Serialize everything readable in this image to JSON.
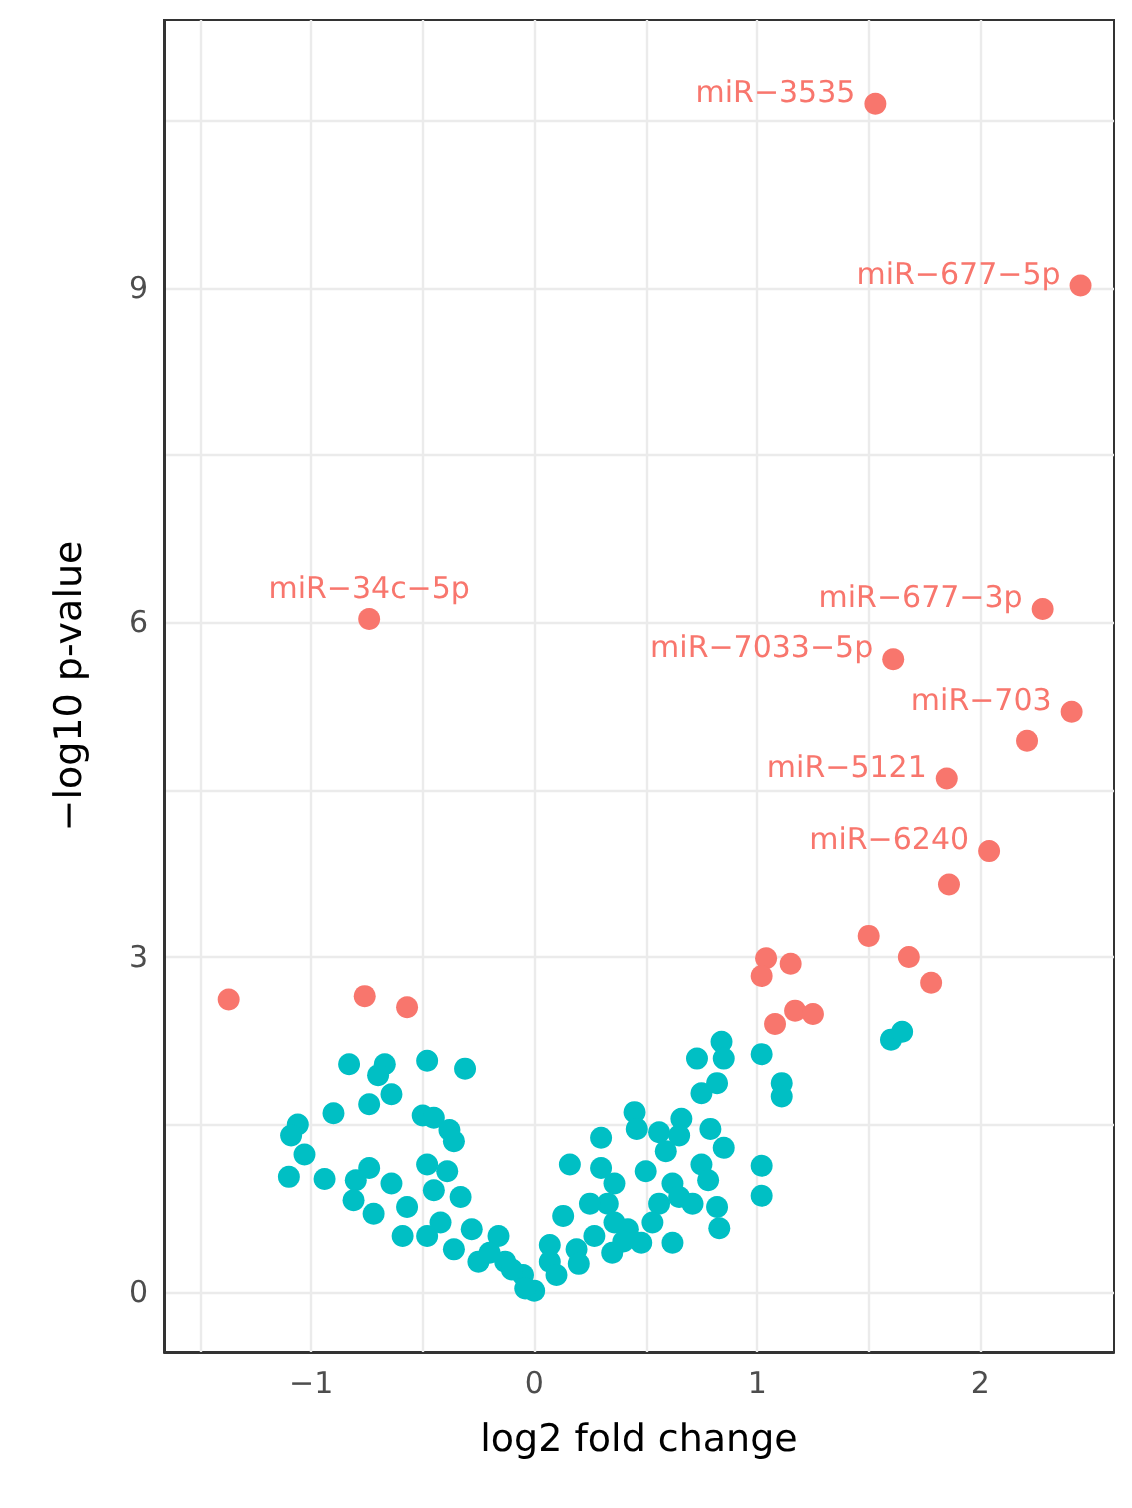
{
  "chart_data": {
    "type": "scatter",
    "xlabel": "log2 fold change",
    "ylabel": "−log10 p-value",
    "xlim": [
      -1.66,
      2.6
    ],
    "ylim": [
      -0.54,
      11.4
    ],
    "xticks": [
      {
        "value": -1.5,
        "label": null
      },
      {
        "value": -1,
        "label": "−1"
      },
      {
        "value": -0.5,
        "label": null
      },
      0,
      {
        "value": 0.5,
        "label": null
      },
      1,
      {
        "value": 1.5,
        "label": null
      },
      2
    ],
    "yticks": [
      0,
      {
        "value": 1.5,
        "label": null
      },
      3,
      {
        "value": 4.5,
        "label": null
      },
      6,
      {
        "value": 7.5,
        "label": null
      },
      9,
      {
        "value": 10.5,
        "label": null
      }
    ],
    "grid": true,
    "marker": "circle",
    "series": [
      {
        "color": "#00bfc4",
        "x": [
          -0.83,
          -0.67,
          -0.7,
          -0.64,
          -0.74,
          -0.9,
          -0.48,
          -0.31,
          -1.06,
          -1.09,
          -1.03,
          -1.1,
          -0.94,
          -0.5,
          -0.45,
          -0.38,
          -0.36,
          -0.74,
          -0.8,
          -0.81,
          -0.72,
          -0.64,
          -0.57,
          -0.59,
          -0.48,
          -0.45,
          -0.39,
          -0.33,
          -0.48,
          -0.42,
          -0.36,
          -0.28,
          -0.25,
          -0.16,
          -0.13,
          -0.05,
          0.0,
          0.07,
          -0.04,
          0.07,
          0.19,
          0.27,
          0.16,
          0.3,
          0.3,
          0.36,
          0.33,
          0.45,
          0.46,
          0.56,
          0.66,
          0.65,
          0.5,
          0.59,
          0.62,
          0.56,
          0.65,
          0.71,
          0.53,
          0.62,
          0.48,
          0.42,
          0.79,
          0.85,
          0.75,
          0.78,
          0.82,
          0.83,
          0.73,
          0.84,
          0.85,
          0.75,
          0.82,
          1.02,
          1.11,
          1.11,
          1.02,
          1.02,
          1.6,
          1.65,
          0.25,
          0.13,
          0.36,
          0.1,
          -0.1,
          0.2,
          -0.2,
          0.35,
          0.4
        ],
        "values": [
          2.04,
          2.04,
          1.94,
          1.77,
          1.68,
          1.6,
          2.07,
          2.0,
          1.5,
          1.4,
          1.23,
          1.03,
          1.01,
          1.58,
          1.56,
          1.45,
          1.35,
          1.11,
          1.0,
          0.82,
          0.7,
          0.97,
          0.76,
          0.5,
          1.14,
          0.91,
          1.08,
          0.85,
          0.5,
          0.62,
          0.38,
          0.56,
          0.27,
          0.5,
          0.27,
          0.15,
          0.01,
          0.42,
          0.03,
          0.27,
          0.38,
          0.5,
          1.14,
          1.38,
          1.11,
          0.97,
          0.79,
          1.61,
          1.46,
          1.43,
          1.55,
          1.4,
          1.08,
          1.26,
          0.97,
          0.79,
          0.85,
          0.79,
          0.62,
          0.44,
          0.44,
          0.56,
          1.46,
          1.29,
          1.14,
          1.0,
          0.76,
          0.57,
          2.09,
          2.24,
          2.09,
          1.78,
          1.87,
          2.13,
          1.87,
          1.75,
          1.13,
          0.86,
          2.26,
          2.33,
          0.79,
          0.68,
          0.62,
          0.15,
          0.2,
          0.25,
          0.35,
          0.35,
          0.45
        ]
      },
      {
        "color": "#f8766d",
        "x": [
          1.53,
          2.45,
          2.28,
          1.61,
          2.41,
          2.21,
          1.85,
          2.04,
          1.86,
          1.5,
          1.68,
          1.78,
          1.04,
          1.15,
          1.02,
          1.08,
          1.17,
          1.25,
          -0.74,
          -1.37,
          -0.76,
          -0.57
        ],
        "values": [
          10.65,
          9.02,
          6.12,
          5.67,
          5.2,
          4.94,
          4.6,
          3.95,
          3.65,
          3.19,
          3.0,
          2.77,
          2.99,
          2.94,
          2.83,
          2.4,
          2.52,
          2.49,
          6.03,
          2.62,
          2.65,
          2.55
        ]
      }
    ],
    "annotations": [
      {
        "text": "miR−3535",
        "x": 1.53,
        "y": 10.65
      },
      {
        "text": "miR−677−5p",
        "x": 2.45,
        "y": 9.02
      },
      {
        "text": "miR−677−3p",
        "x": 2.28,
        "y": 6.12
      },
      {
        "text": "miR−7033−5p",
        "x": 1.61,
        "y": 5.67
      },
      {
        "text": "miR−703",
        "x": 2.41,
        "y": 5.2
      },
      {
        "text": "miR−5121",
        "x": 1.85,
        "y": 4.6
      },
      {
        "text": "miR−6240",
        "x": 2.04,
        "y": 3.95
      },
      {
        "text": "miR−34c−5p",
        "x": -0.74,
        "y": 6.03
      }
    ]
  }
}
